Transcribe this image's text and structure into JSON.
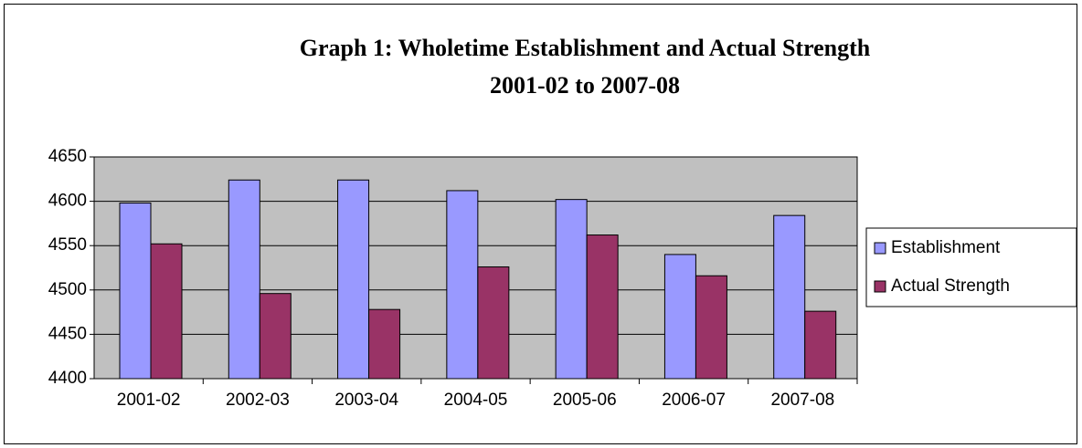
{
  "chart_data": {
    "type": "bar",
    "title": "Graph 1:  Wholetime Establishment and Actual Strength",
    "subtitle": "2001-02 to 2007-08",
    "categories": [
      "2001-02",
      "2002-03",
      "2003-04",
      "2004-05",
      "2005-06",
      "2006-07",
      "2007-08"
    ],
    "series": [
      {
        "name": "Establishment",
        "color": "#9999ff",
        "values": [
          4598,
          4624,
          4624,
          4612,
          4602,
          4540,
          4584
        ]
      },
      {
        "name": "Actual Strength",
        "color": "#993366",
        "values": [
          4552,
          4496,
          4478,
          4526,
          4562,
          4516,
          4476
        ]
      }
    ],
    "ylim": [
      4400,
      4650
    ],
    "yticks": [
      4400,
      4450,
      4500,
      4550,
      4600,
      4650
    ],
    "grid": true,
    "legend": "right"
  }
}
